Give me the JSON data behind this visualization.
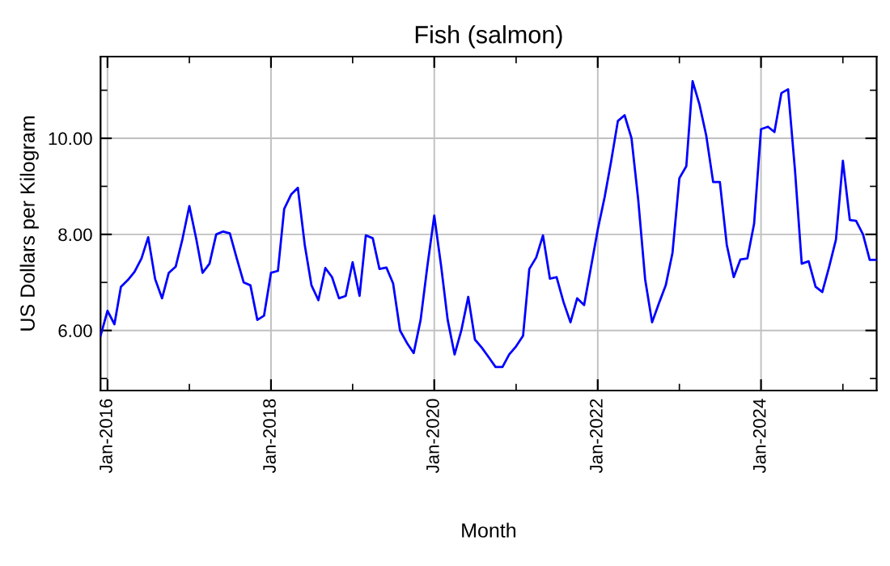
{
  "chart_data": {
    "type": "line",
    "title": "Fish (salmon)",
    "xlabel": "Month",
    "ylabel": "US Dollars per Kilogram",
    "x": [
      "2015-12",
      "2016-01",
      "2016-02",
      "2016-03",
      "2016-04",
      "2016-05",
      "2016-06",
      "2016-07",
      "2016-08",
      "2016-09",
      "2016-10",
      "2016-11",
      "2016-12",
      "2017-01",
      "2017-02",
      "2017-03",
      "2017-04",
      "2017-05",
      "2017-06",
      "2017-07",
      "2017-08",
      "2017-09",
      "2017-10",
      "2017-11",
      "2017-12",
      "2018-01",
      "2018-02",
      "2018-03",
      "2018-04",
      "2018-05",
      "2018-06",
      "2018-07",
      "2018-08",
      "2018-09",
      "2018-10",
      "2018-11",
      "2018-12",
      "2019-01",
      "2019-02",
      "2019-03",
      "2019-04",
      "2019-05",
      "2019-06",
      "2019-07",
      "2019-08",
      "2019-09",
      "2019-10",
      "2019-11",
      "2019-12",
      "2020-01",
      "2020-02",
      "2020-03",
      "2020-04",
      "2020-05",
      "2020-06",
      "2020-07",
      "2020-08",
      "2020-09",
      "2020-10",
      "2020-11",
      "2020-12",
      "2021-01",
      "2021-02",
      "2021-03",
      "2021-04",
      "2021-05",
      "2021-06",
      "2021-07",
      "2021-08",
      "2021-09",
      "2021-10",
      "2021-11",
      "2021-12",
      "2022-01",
      "2022-02",
      "2022-03",
      "2022-04",
      "2022-05",
      "2022-06",
      "2022-07",
      "2022-08",
      "2022-09",
      "2022-10",
      "2022-11",
      "2022-12",
      "2023-01",
      "2023-02",
      "2023-03",
      "2023-04",
      "2023-05",
      "2023-06",
      "2023-07",
      "2023-08",
      "2023-09",
      "2023-10",
      "2023-11",
      "2023-12",
      "2024-01",
      "2024-02",
      "2024-03",
      "2024-04",
      "2024-05",
      "2024-06",
      "2024-07",
      "2024-08",
      "2024-09",
      "2024-10",
      "2024-11",
      "2024-12",
      "2025-01",
      "2025-02",
      "2025-03",
      "2025-04",
      "2025-05",
      "2025-06"
    ],
    "series": [
      {
        "color": "#0000ff",
        "values": [
          5.89,
          6.41,
          6.13,
          6.91,
          7.05,
          7.22,
          7.5,
          7.94,
          7.07,
          6.67,
          7.2,
          7.33,
          7.9,
          8.59,
          7.9,
          7.2,
          7.39,
          8.0,
          8.06,
          8.02,
          7.5,
          7.0,
          6.94,
          6.22,
          6.31,
          7.2,
          7.24,
          8.53,
          8.83,
          8.97,
          7.78,
          6.94,
          6.63,
          7.3,
          7.11,
          6.67,
          6.72,
          7.42,
          6.72,
          7.98,
          7.92,
          7.28,
          7.31,
          6.98,
          6.0,
          5.74,
          5.53,
          6.22,
          7.33,
          8.39,
          7.33,
          6.22,
          5.5,
          6.0,
          6.7,
          5.81,
          5.64,
          5.44,
          5.24,
          5.24,
          5.5,
          5.67,
          5.89,
          7.28,
          7.52,
          7.98,
          7.08,
          7.11,
          6.59,
          6.17,
          6.67,
          6.53,
          7.3,
          8.1,
          8.78,
          9.5,
          10.36,
          10.48,
          10.0,
          8.72,
          7.06,
          6.17,
          6.56,
          6.94,
          7.61,
          9.17,
          9.42,
          11.19,
          10.7,
          10.06,
          9.09,
          9.09,
          7.78,
          7.11,
          7.48,
          7.5,
          8.22,
          10.19,
          10.24,
          10.13,
          10.94,
          11.02,
          9.33,
          7.39,
          7.44,
          6.91,
          6.8,
          7.33,
          7.89,
          9.53,
          8.3,
          8.28,
          8.0,
          7.47,
          7.47
        ]
      }
    ],
    "xlim": [
      "2015-12",
      "2025-06"
    ],
    "xticks": [
      {
        "value": "2016-01",
        "label": "Jan-2016"
      },
      {
        "value": "2017-01",
        "label": null
      },
      {
        "value": "2018-01",
        "label": "Jan-2018"
      },
      {
        "value": "2019-01",
        "label": null
      },
      {
        "value": "2020-01",
        "label": "Jan-2020"
      },
      {
        "value": "2021-01",
        "label": null
      },
      {
        "value": "2022-01",
        "label": "Jan-2022"
      },
      {
        "value": "2023-01",
        "label": null
      },
      {
        "value": "2024-01",
        "label": "Jan-2024"
      },
      {
        "value": "2025-01",
        "label": null
      }
    ],
    "ylim": [
      4.75,
      11.7
    ],
    "yticks": [
      {
        "value": 5,
        "label": null
      },
      {
        "value": 6,
        "label": "6.00"
      },
      {
        "value": 7,
        "label": null
      },
      {
        "value": 8,
        "label": "8.00"
      },
      {
        "value": 9,
        "label": null
      },
      {
        "value": 10,
        "label": "10.00"
      },
      {
        "value": 11,
        "label": null
      }
    ],
    "grid": true,
    "line_style": "solid"
  }
}
